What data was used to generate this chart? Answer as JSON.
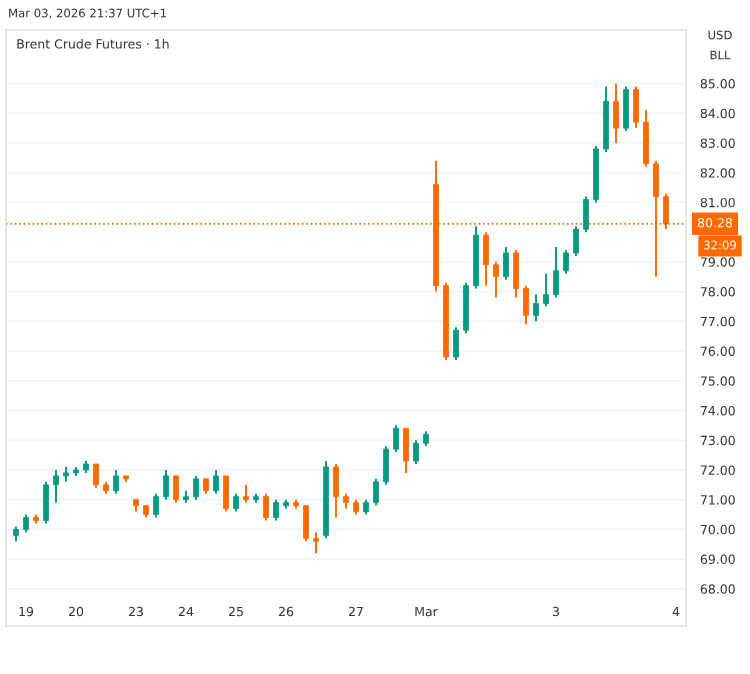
{
  "chart_data": {
    "type": "candlestick",
    "title": "Brent Crude Futures · 1h",
    "annotations": [
      "Mar 03, 2026 21:37 UTC+1",
      "USD",
      "BLL",
      "32:09"
    ],
    "categories": [
      null,
      "19",
      null,
      null,
      null,
      null,
      "20",
      null,
      null,
      null,
      null,
      null,
      "23",
      null,
      null,
      null,
      null,
      "24",
      null,
      null,
      null,
      null,
      "25",
      null,
      null,
      null,
      null,
      "26",
      null,
      null,
      null,
      null,
      null,
      null,
      "27",
      null,
      null,
      null,
      null,
      null,
      null,
      "Mar",
      null,
      null,
      null,
      null,
      null,
      null,
      null,
      null,
      null,
      null,
      null,
      null,
      "3",
      null,
      null,
      null,
      null,
      null,
      null,
      null,
      null,
      null,
      null,
      null,
      "4"
    ],
    "ohlc": [
      [
        69.8,
        70.1,
        69.6,
        70.0
      ],
      [
        70.0,
        70.5,
        69.9,
        70.4
      ],
      [
        70.4,
        70.5,
        70.2,
        70.3
      ],
      [
        70.3,
        71.6,
        70.2,
        71.5
      ],
      [
        71.5,
        72.0,
        70.9,
        71.8
      ],
      [
        71.8,
        72.1,
        71.6,
        71.9
      ],
      [
        71.9,
        72.1,
        71.8,
        72.0
      ],
      [
        72.0,
        72.3,
        71.9,
        72.2
      ],
      [
        72.2,
        72.2,
        71.4,
        71.5
      ],
      [
        71.5,
        71.6,
        71.2,
        71.3
      ],
      [
        71.3,
        72.0,
        71.2,
        71.8
      ],
      [
        71.8,
        71.8,
        71.6,
        71.7
      ],
      [
        71.0,
        71.0,
        70.6,
        70.8
      ],
      [
        70.8,
        70.8,
        70.4,
        70.5
      ],
      [
        70.5,
        71.2,
        70.4,
        71.1
      ],
      [
        71.1,
        72.0,
        71.0,
        71.8
      ],
      [
        71.8,
        71.8,
        70.9,
        71.0
      ],
      [
        71.0,
        71.3,
        70.9,
        71.1
      ],
      [
        71.1,
        71.8,
        71.0,
        71.7
      ],
      [
        71.7,
        71.7,
        71.2,
        71.3
      ],
      [
        71.3,
        72.0,
        71.2,
        71.8
      ],
      [
        71.8,
        71.8,
        70.6,
        70.7
      ],
      [
        70.7,
        71.2,
        70.6,
        71.1
      ],
      [
        71.1,
        71.5,
        70.9,
        71.0
      ],
      [
        71.0,
        71.2,
        70.9,
        71.1
      ],
      [
        71.1,
        71.2,
        70.3,
        70.4
      ],
      [
        70.4,
        71.0,
        70.3,
        70.9
      ],
      [
        70.8,
        71.0,
        70.7,
        70.9
      ],
      [
        70.9,
        71.0,
        70.7,
        70.8
      ],
      [
        70.8,
        70.8,
        69.6,
        69.7
      ],
      [
        69.7,
        69.9,
        69.2,
        69.6
      ],
      [
        69.8,
        72.3,
        69.7,
        72.1
      ],
      [
        72.1,
        72.2,
        70.4,
        71.1
      ],
      [
        71.1,
        71.2,
        70.7,
        70.9
      ],
      [
        70.9,
        71.0,
        70.5,
        70.6
      ],
      [
        70.6,
        71.0,
        70.5,
        70.9
      ],
      [
        70.9,
        71.7,
        70.8,
        71.6
      ],
      [
        71.6,
        72.8,
        71.5,
        72.7
      ],
      [
        72.7,
        73.5,
        72.6,
        73.4
      ],
      [
        73.4,
        73.4,
        71.9,
        72.3
      ],
      [
        72.3,
        73.0,
        72.2,
        72.9
      ],
      [
        72.9,
        73.3,
        72.8,
        73.2
      ],
      [
        81.6,
        82.4,
        78.0,
        78.2
      ],
      [
        78.2,
        78.3,
        75.7,
        75.8
      ],
      [
        75.8,
        76.8,
        75.7,
        76.7
      ],
      [
        76.7,
        78.3,
        76.6,
        78.2
      ],
      [
        78.2,
        80.2,
        78.1,
        79.9
      ],
      [
        79.9,
        80.0,
        78.2,
        78.9
      ],
      [
        78.9,
        79.0,
        77.8,
        78.5
      ],
      [
        78.5,
        79.5,
        78.4,
        79.3
      ],
      [
        79.3,
        79.4,
        77.8,
        78.1
      ],
      [
        78.1,
        78.2,
        76.9,
        77.2
      ],
      [
        77.2,
        77.9,
        77.0,
        77.6
      ],
      [
        77.6,
        78.6,
        77.5,
        77.9
      ],
      [
        77.9,
        79.5,
        77.8,
        78.7
      ],
      [
        78.7,
        79.4,
        78.6,
        79.3
      ],
      [
        79.3,
        80.2,
        79.2,
        80.1
      ],
      [
        80.1,
        81.2,
        80.0,
        81.1
      ],
      [
        81.1,
        82.9,
        81.0,
        82.8
      ],
      [
        82.8,
        84.9,
        82.7,
        84.4
      ],
      [
        84.4,
        85.0,
        83.0,
        83.5
      ],
      [
        83.5,
        84.9,
        83.4,
        84.8
      ],
      [
        84.8,
        84.9,
        83.5,
        83.7
      ],
      [
        83.7,
        84.1,
        82.2,
        82.3
      ],
      [
        82.3,
        82.4,
        78.5,
        81.2
      ],
      [
        81.2,
        81.3,
        80.1,
        80.28
      ],
      null
    ],
    "colors": [
      "#089981",
      "#089981",
      "#ff6a00",
      "#089981",
      "#089981",
      "#089981",
      "#089981",
      "#089981",
      "#ff6a00",
      "#ff6a00",
      "#089981",
      "#ff6a00",
      "#ff6a00",
      "#ff6a00",
      "#089981",
      "#089981",
      "#ff6a00",
      "#089981",
      "#089981",
      "#ff6a00",
      "#089981",
      "#ff6a00",
      "#089981",
      "#ff6a00",
      "#089981",
      "#ff6a00",
      "#089981",
      "#089981",
      "#ff6a00",
      "#ff6a00",
      "#ff6a00",
      "#089981",
      "#ff6a00",
      "#ff6a00",
      "#ff6a00",
      "#089981",
      "#089981",
      "#089981",
      "#089981",
      "#ff6a00",
      "#089981",
      "#089981",
      "#ff6a00",
      "#ff6a00",
      "#089981",
      "#089981",
      "#089981",
      "#ff6a00",
      "#ff6a00",
      "#089981",
      "#ff6a00",
      "#ff6a00",
      "#089981",
      "#089981",
      "#089981",
      "#089981",
      "#089981",
      "#089981",
      "#089981",
      "#089981",
      "#ff6a00",
      "#089981",
      "#ff6a00",
      "#ff6a00",
      "#ff6a00",
      "#ff6a00",
      null
    ],
    "ylim": [
      66.75,
      86.8
    ],
    "yticks": [
      {
        "value": 68,
        "label": "68.00"
      },
      {
        "value": 69,
        "label": "69.00"
      },
      {
        "value": 70,
        "label": "70.00"
      },
      {
        "value": 71,
        "label": "71.00"
      },
      {
        "value": 72,
        "label": "72.00"
      },
      {
        "value": 73,
        "label": "73.00"
      },
      {
        "value": 74,
        "label": "74.00"
      },
      {
        "value": 75,
        "label": "75.00"
      },
      {
        "value": 76,
        "label": "76.00"
      },
      {
        "value": 77,
        "label": "77.00"
      },
      {
        "value": 78,
        "label": "78.00"
      },
      {
        "value": 79,
        "label": "79.00"
      },
      {
        "value": 81,
        "label": "81.00"
      },
      {
        "value": 82,
        "label": "82.00"
      },
      {
        "value": 83,
        "label": "83.00"
      },
      {
        "value": 84,
        "label": "84.00"
      },
      {
        "value": 85,
        "label": "85.00"
      }
    ],
    "ref_lines": [
      {
        "axis": "y",
        "value": 80.28,
        "label": "80.28",
        "color": "#ff6a00",
        "line_style": "dotted"
      }
    ],
    "grid": "y"
  }
}
